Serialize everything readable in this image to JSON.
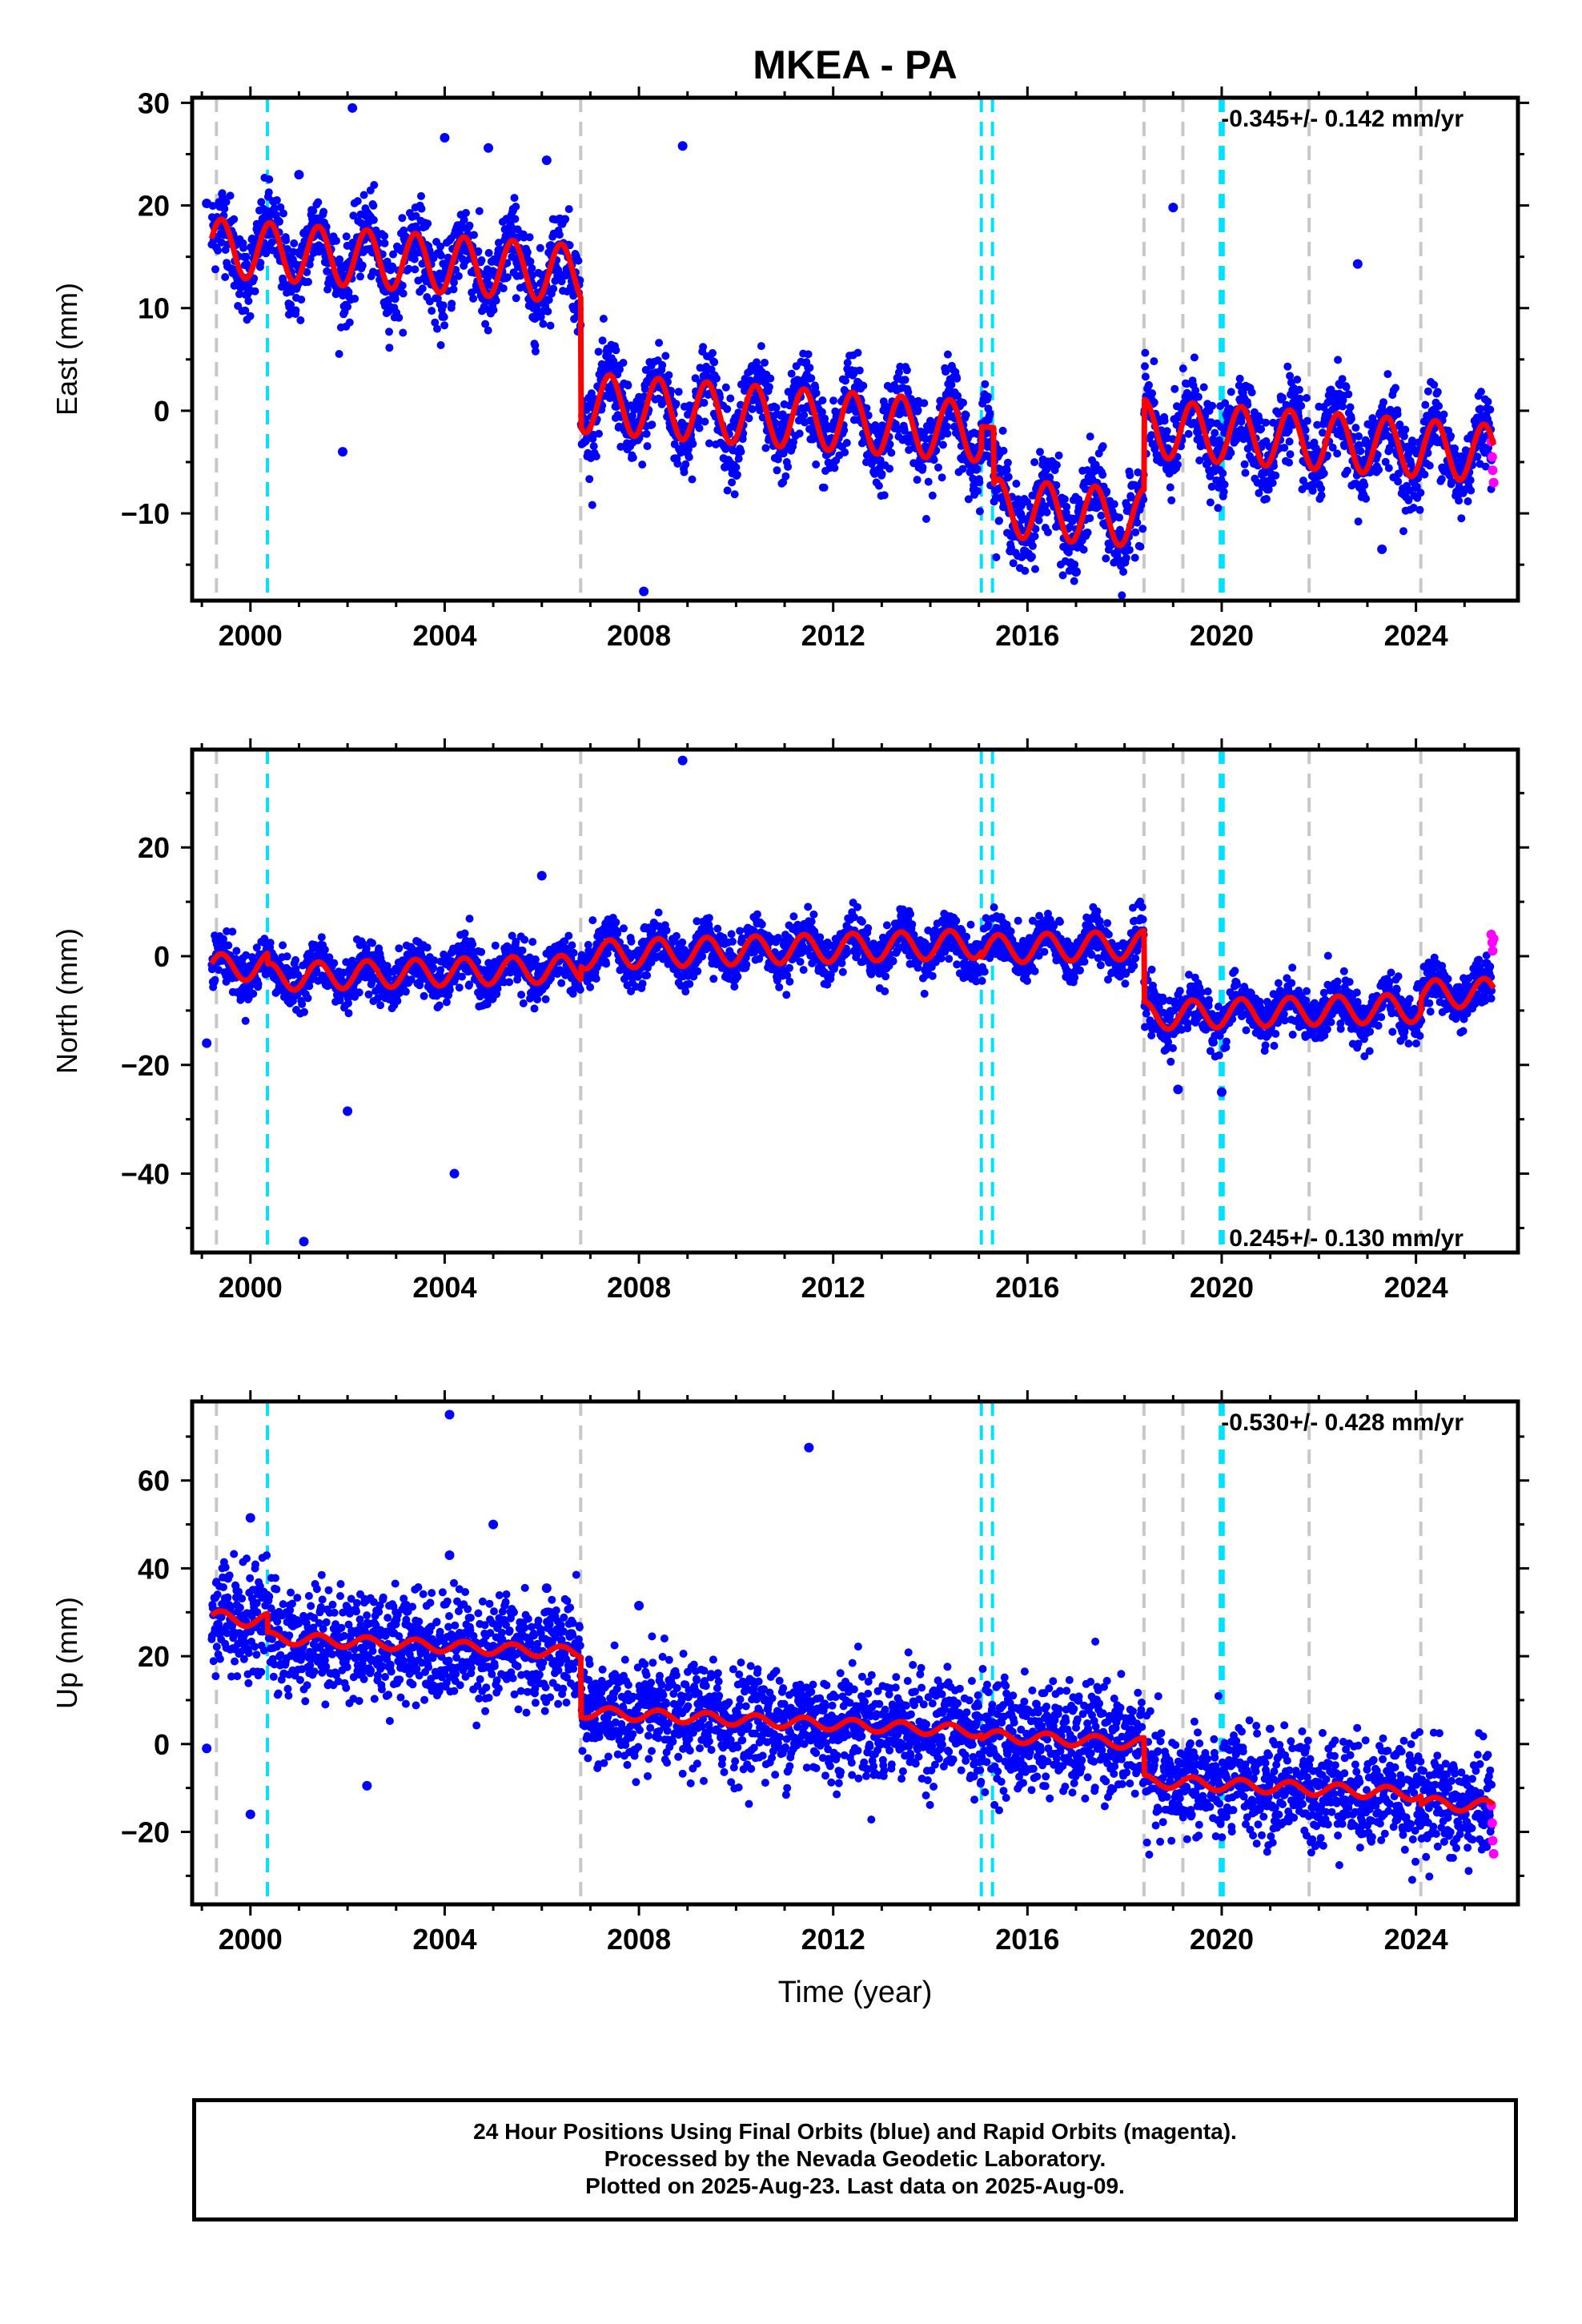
{
  "title": "MKEA - PA",
  "xlabel": "Time (year)",
  "caption": [
    "24 Hour Positions Using Final Orbits (blue) and Rapid Orbits (magenta).",
    "Processed by the Nevada Geodetic Laboratory.",
    "Plotted on 2025-Aug-23. Last data on 2025-Aug-09."
  ],
  "colors": {
    "final_orbits": "#0000ff",
    "rapid_orbits": "#ff00ff",
    "model_fit": "#ff0000",
    "equipment_change_lines": "#c8c8c8",
    "earthquake_lines": "#00e0ff"
  },
  "chart_data": [
    {
      "type": "scatter",
      "ylabel": "East (mm)",
      "rate_label": "-0.345+/- 0.142 mm/yr",
      "rate_position": "top-right",
      "xlim": [
        1998.8,
        2026.1
      ],
      "ylim": [
        -18.5,
        30.5
      ],
      "xticks": [
        2000,
        2004,
        2008,
        2012,
        2016,
        2020,
        2024
      ],
      "yticks": [
        -10,
        0,
        10,
        20,
        30
      ],
      "gray_lines": [
        1999.3,
        2006.8,
        2018.4,
        2019.2,
        2021.8,
        2024.1
      ],
      "cyan_lines": [
        2000.35,
        2015.05,
        2015.28,
        2019.97,
        2020.03
      ],
      "model_segments": [
        {
          "t0": 1999.2,
          "t1": 2006.8,
          "offset": 11.5,
          "amp": 2.8
        },
        {
          "t0": 2006.8,
          "t1": 2015.05,
          "offset": -1.0,
          "amp": 2.9
        },
        {
          "t0": 2015.05,
          "t1": 2015.3,
          "offset": -0.5,
          "amp": 0.0
        },
        {
          "t0": 2015.3,
          "t1": 2018.4,
          "offset": -8.3,
          "amp": 2.8
        },
        {
          "t0": 2018.4,
          "t1": 2025.6,
          "offset": 0.5,
          "amp": 2.8
        }
      ],
      "trend_mm_per_yr": -0.345,
      "scatter_sigma": 2.0,
      "outliers": [
        [
          2002.1,
          29.5
        ],
        [
          2004.0,
          26.6
        ],
        [
          2004.9,
          25.6
        ],
        [
          2006.1,
          24.4
        ],
        [
          2008.9,
          25.8
        ],
        [
          2001.0,
          23.0
        ],
        [
          1999.1,
          20.2
        ],
        [
          2019.0,
          19.8
        ],
        [
          2022.8,
          14.3
        ],
        [
          2001.9,
          -4.0
        ],
        [
          2008.1,
          -17.6
        ],
        [
          2017.0,
          -15.7
        ],
        [
          2023.3,
          -13.5
        ]
      ],
      "rapid_points": [
        [
          2025.55,
          -3.0
        ],
        [
          2025.57,
          -4.5
        ],
        [
          2025.58,
          -5.8
        ],
        [
          2025.6,
          -7.0
        ]
      ]
    },
    {
      "type": "scatter",
      "ylabel": "North (mm)",
      "rate_label": "0.245+/- 0.130 mm/yr",
      "rate_position": "bottom-right",
      "xlim": [
        1998.8,
        2026.1
      ],
      "ylim": [
        -54.5,
        38.0
      ],
      "xticks": [
        2000,
        2004,
        2008,
        2012,
        2016,
        2020,
        2024
      ],
      "yticks": [
        -40,
        -20,
        0,
        20
      ],
      "gray_lines": [
        1999.3,
        2006.8,
        2018.4,
        2019.2,
        2021.8,
        2024.1
      ],
      "cyan_lines": [
        2000.35,
        2015.05,
        2015.28,
        2019.97,
        2020.03
      ],
      "model_segments": [
        {
          "t0": 1999.2,
          "t1": 2000.35,
          "offset": 1.0,
          "amp": 2.5
        },
        {
          "t0": 2000.35,
          "t1": 2006.8,
          "offset": -1.0,
          "amp": 2.5
        },
        {
          "t0": 2006.8,
          "t1": 2015.05,
          "offset": 1.5,
          "amp": 2.6
        },
        {
          "t0": 2015.05,
          "t1": 2018.4,
          "offset": 0.5,
          "amp": 2.6
        },
        {
          "t0": 2018.4,
          "t1": 2024.1,
          "offset": -12.5,
          "amp": 2.6
        },
        {
          "t0": 2024.1,
          "t1": 2025.6,
          "offset": -10.0,
          "amp": 2.6
        }
      ],
      "trend_mm_per_yr": 0.245,
      "scatter_sigma": 2.2,
      "outliers": [
        [
          2008.9,
          36.0
        ],
        [
          2006.0,
          14.8
        ],
        [
          2002.0,
          -28.5
        ],
        [
          2004.2,
          -40.0
        ],
        [
          2001.1,
          -52.5
        ],
        [
          1999.1,
          -16.0
        ],
        [
          2019.1,
          -24.5
        ],
        [
          2020.0,
          -25.0
        ]
      ],
      "rapid_points": [
        [
          2025.55,
          4.0
        ],
        [
          2025.57,
          2.5
        ],
        [
          2025.58,
          1.0
        ],
        [
          2025.6,
          3.2
        ]
      ]
    },
    {
      "type": "scatter",
      "ylabel": "Up (mm)",
      "rate_label": "-0.530+/- 0.428 mm/yr",
      "rate_position": "top-right",
      "xlim": [
        1998.8,
        2026.1
      ],
      "ylim": [
        -36.5,
        78.0
      ],
      "xticks": [
        2000,
        2004,
        2008,
        2012,
        2016,
        2020,
        2024
      ],
      "yticks": [
        -20,
        0,
        20,
        40,
        60
      ],
      "gray_lines": [
        1999.3,
        2006.8,
        2018.4,
        2019.2,
        2021.8,
        2024.1
      ],
      "cyan_lines": [
        2000.35,
        2015.05,
        2015.28,
        2019.97,
        2020.03
      ],
      "model_segments": [
        {
          "t0": 1999.2,
          "t1": 2000.35,
          "offset": 22.0,
          "amp": 1.6
        },
        {
          "t0": 2000.35,
          "t1": 2006.8,
          "offset": 18.0,
          "amp": 1.3
        },
        {
          "t0": 2006.8,
          "t1": 2015.05,
          "offset": 4.5,
          "amp": 1.3
        },
        {
          "t0": 2015.05,
          "t1": 2018.4,
          "offset": 3.5,
          "amp": 1.3
        },
        {
          "t0": 2018.4,
          "t1": 2024.1,
          "offset": -5.0,
          "amp": 1.4
        },
        {
          "t0": 2024.1,
          "t1": 2025.6,
          "offset": -7.0,
          "amp": 1.4
        }
      ],
      "trend_mm_per_yr": -0.53,
      "scatter_sigma": 6.0,
      "outliers": [
        [
          2004.1,
          75.0
        ],
        [
          2011.5,
          67.5
        ],
        [
          2005.0,
          50.0
        ],
        [
          2000.0,
          51.5
        ],
        [
          2006.1,
          35.5
        ],
        [
          2008.0,
          31.5
        ],
        [
          2004.1,
          43.0
        ],
        [
          2002.4,
          -9.5
        ],
        [
          2000.0,
          -16.0
        ],
        [
          1999.1,
          -1.0
        ]
      ],
      "rapid_points": [
        [
          2025.55,
          -14.0
        ],
        [
          2025.57,
          -18.0
        ],
        [
          2025.58,
          -22.0
        ],
        [
          2025.6,
          -25.0
        ]
      ]
    }
  ]
}
